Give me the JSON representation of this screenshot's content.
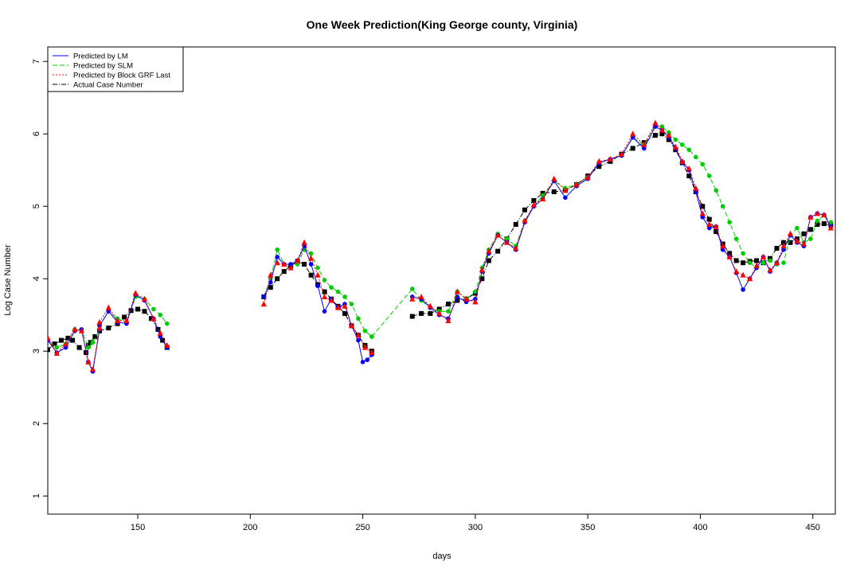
{
  "chart_data": {
    "type": "line",
    "title": "One Week Prediction(King George county, Virginia)",
    "xlabel": "days",
    "ylabel": "Log Case Number",
    "xlim": [
      110,
      460
    ],
    "ylim": [
      0.75,
      7.2
    ],
    "xticks": [
      150,
      200,
      250,
      300,
      350,
      400,
      450
    ],
    "yticks": [
      1,
      2,
      3,
      4,
      5,
      6,
      7
    ],
    "grid": false,
    "legend": "top-left",
    "legend_entries": [
      {
        "label": "Predicted by LM",
        "color": "#0000ff",
        "dash": "solid"
      },
      {
        "label": "Predicted by SLM",
        "color": "#00cc00",
        "dash": "dashed"
      },
      {
        "label": "Predicted by Block GRF Last",
        "color": "#ff0000",
        "dash": "dotted"
      },
      {
        "label": "Actual Case Number",
        "color": "#000000",
        "dash": "dashdot"
      }
    ],
    "series": [
      {
        "name": "Actual Case Number",
        "color": "#000000",
        "marker": "square",
        "segments": [
          {
            "x": [
              110,
              113,
              116,
              119,
              121,
              124,
              127,
              128,
              129,
              131,
              133
            ],
            "y": [
              3.02,
              3.1,
              3.15,
              3.18,
              3.15,
              3.05,
              2.98,
              3.08,
              3.12,
              3.2,
              3.28
            ]
          },
          {
            "x": [
              133,
              137,
              141,
              144,
              147,
              150,
              153,
              156,
              159,
              161,
              163
            ],
            "y": [
              3.28,
              3.32,
              3.38,
              3.47,
              3.56,
              3.58,
              3.55,
              3.45,
              3.3,
              3.15,
              3.05
            ]
          },
          {
            "x": [
              206,
              209,
              212,
              215,
              218,
              221,
              224,
              227,
              230,
              233,
              236,
              239,
              242,
              245,
              248,
              251,
              254
            ],
            "y": [
              3.75,
              3.88,
              4.0,
              4.1,
              4.18,
              4.24,
              4.2,
              4.05,
              3.92,
              3.82,
              3.72,
              3.62,
              3.52,
              3.35,
              3.22,
              3.08,
              3.0
            ]
          },
          {
            "x": [
              272,
              276,
              280,
              284,
              288,
              292,
              296,
              300,
              303,
              306,
              310,
              314,
              318,
              322,
              326,
              330,
              335,
              340,
              345,
              350,
              355,
              360,
              365,
              370,
              375,
              380,
              383,
              386,
              389,
              392,
              395,
              398,
              401,
              404,
              407,
              410,
              413,
              416,
              419,
              422,
              425,
              428,
              431,
              434,
              437,
              440,
              443,
              446,
              449,
              452,
              455,
              458
            ],
            "y": [
              3.48,
              3.52,
              3.52,
              3.58,
              3.65,
              3.7,
              3.72,
              3.8,
              4.0,
              4.25,
              4.38,
              4.55,
              4.75,
              4.95,
              5.08,
              5.18,
              5.2,
              5.22,
              5.3,
              5.42,
              5.55,
              5.62,
              5.72,
              5.8,
              5.88,
              5.98,
              6.0,
              5.92,
              5.78,
              5.6,
              5.42,
              5.2,
              5.0,
              4.82,
              4.65,
              4.48,
              4.35,
              4.25,
              4.22,
              4.24,
              4.25,
              4.22,
              4.28,
              4.42,
              4.5,
              4.5,
              4.55,
              4.62,
              4.68,
              4.75,
              4.76,
              4.74
            ]
          }
        ]
      },
      {
        "name": "Predicted by SLM",
        "color": "#00cc00",
        "marker": "circle",
        "segments": [
          {
            "x": [
              110,
              114,
              118,
              122,
              125,
              128,
              130,
              133
            ],
            "y": [
              3.15,
              3.05,
              3.1,
              3.3,
              3.3,
              3.05,
              3.12,
              3.3
            ]
          },
          {
            "x": [
              133,
              137,
              141,
              145,
              149,
              153,
              157,
              160,
              163
            ],
            "y": [
              3.35,
              3.55,
              3.45,
              3.4,
              3.75,
              3.72,
              3.58,
              3.5,
              3.38
            ]
          },
          {
            "x": [
              206,
              209,
              212,
              215,
              218,
              221,
              224,
              227,
              230,
              233,
              236,
              239,
              242,
              245,
              248,
              251,
              254
            ],
            "y": [
              3.75,
              4.0,
              4.4,
              4.2,
              4.2,
              4.2,
              4.4,
              4.35,
              4.15,
              3.98,
              3.88,
              3.82,
              3.75,
              3.65,
              3.45,
              3.28,
              3.2
            ]
          },
          {
            "x": [
              254,
              272,
              276,
              280,
              284,
              288,
              292,
              296,
              300,
              303,
              306,
              310,
              314,
              318,
              322,
              326,
              330,
              335,
              340,
              345,
              350,
              355,
              360,
              365,
              370,
              375,
              380,
              383,
              386,
              389,
              392,
              395,
              398,
              401,
              404,
              407,
              410,
              413,
              416,
              419,
              422,
              425,
              428,
              431,
              434,
              437,
              440,
              443,
              446,
              449,
              452,
              455,
              458
            ],
            "y": [
              3.2,
              3.86,
              3.7,
              3.6,
              3.55,
              3.55,
              3.82,
              3.72,
              3.82,
              4.15,
              4.4,
              4.62,
              4.55,
              4.45,
              4.8,
              5.0,
              5.15,
              5.35,
              5.25,
              5.3,
              5.4,
              5.6,
              5.65,
              5.7,
              5.95,
              5.85,
              6.12,
              6.1,
              6.02,
              5.92,
              5.85,
              5.78,
              5.68,
              5.58,
              5.42,
              5.22,
              5.0,
              4.78,
              4.55,
              4.35,
              4.22,
              4.15,
              4.22,
              4.25,
              4.2,
              4.22,
              4.6,
              4.7,
              4.5,
              4.55,
              4.8,
              4.88,
              4.78
            ]
          }
        ]
      },
      {
        "name": "Predicted by LM",
        "color": "#0000ff",
        "marker": "circle",
        "segments": [
          {
            "x": [
              110,
              114,
              118,
              122,
              125,
              128,
              130,
              133
            ],
            "y": [
              3.15,
              2.98,
              3.05,
              3.28,
              3.3,
              2.85,
              2.72,
              3.3
            ]
          },
          {
            "x": [
              133,
              137,
              141,
              145,
              149,
              153,
              157,
              160,
              163
            ],
            "y": [
              3.35,
              3.55,
              3.4,
              3.38,
              3.78,
              3.7,
              3.45,
              3.2,
              3.05
            ]
          },
          {
            "x": [
              206,
              209,
              212,
              215,
              218,
              221,
              224,
              227,
              230,
              233,
              236,
              239,
              242,
              245,
              248,
              250,
              252,
              254
            ],
            "y": [
              3.75,
              3.95,
              4.3,
              4.2,
              4.2,
              4.25,
              4.45,
              4.2,
              3.9,
              3.55,
              3.72,
              3.6,
              3.65,
              3.35,
              3.15,
              2.85,
              2.88,
              2.95
            ]
          },
          {
            "x": [
              272,
              276,
              280,
              284,
              288,
              292,
              296,
              300,
              303,
              306,
              310,
              314,
              318,
              322,
              326,
              330,
              335,
              340,
              345,
              350,
              355,
              360,
              365,
              370,
              375,
              380,
              383,
              386,
              389,
              392,
              395,
              398,
              401,
              404,
              407,
              410,
              413,
              416,
              419,
              422,
              425,
              428,
              431,
              434,
              437,
              440,
              443,
              446,
              449,
              452,
              455,
              458
            ],
            "y": [
              3.75,
              3.72,
              3.6,
              3.5,
              3.45,
              3.75,
              3.68,
              3.72,
              4.1,
              4.35,
              4.6,
              4.5,
              4.4,
              4.78,
              5.0,
              5.1,
              5.35,
              5.12,
              5.28,
              5.38,
              5.6,
              5.65,
              5.7,
              5.95,
              5.8,
              6.1,
              6.05,
              5.95,
              5.8,
              5.6,
              5.5,
              5.2,
              4.85,
              4.7,
              4.72,
              4.4,
              4.3,
              4.08,
              3.85,
              4.0,
              4.15,
              4.3,
              4.1,
              4.22,
              4.4,
              4.6,
              4.5,
              4.45,
              4.85,
              4.9,
              4.88,
              4.72
            ]
          }
        ]
      },
      {
        "name": "Predicted by Block GRF Last",
        "color": "#ff0000",
        "marker": "triangle",
        "segments": [
          {
            "x": [
              110,
              114,
              118,
              122,
              125,
              128,
              130,
              133
            ],
            "y": [
              3.18,
              2.97,
              3.1,
              3.3,
              3.28,
              2.85,
              2.75,
              3.32
            ]
          },
          {
            "x": [
              133,
              137,
              141,
              145,
              149,
              153,
              157,
              160,
              163
            ],
            "y": [
              3.4,
              3.6,
              3.42,
              3.42,
              3.8,
              3.72,
              3.45,
              3.25,
              3.08
            ]
          },
          {
            "x": [
              206,
              209,
              212,
              215,
              218,
              221,
              224,
              227,
              230,
              233,
              236,
              239,
              242,
              245,
              248,
              251,
              254
            ],
            "y": [
              3.65,
              4.05,
              4.22,
              4.2,
              4.15,
              4.25,
              4.5,
              4.28,
              4.05,
              3.75,
              3.7,
              3.6,
              3.62,
              3.35,
              3.22,
              3.05,
              2.98
            ]
          },
          {
            "x": [
              272,
              276,
              280,
              284,
              288,
              292,
              296,
              300,
              303,
              306,
              310,
              314,
              318,
              322,
              326,
              330,
              335,
              340,
              345,
              350,
              355,
              360,
              365,
              370,
              375,
              380,
              383,
              386,
              389,
              392,
              395,
              398,
              401,
              404,
              407,
              410,
              413,
              416,
              419,
              422,
              425,
              428,
              431,
              434,
              437,
              440,
              443,
              446,
              449,
              452,
              455,
              458
            ],
            "y": [
              3.72,
              3.75,
              3.62,
              3.52,
              3.42,
              3.82,
              3.72,
              3.68,
              4.12,
              4.38,
              4.6,
              4.5,
              4.42,
              4.8,
              5.02,
              5.1,
              5.38,
              5.22,
              5.3,
              5.4,
              5.62,
              5.65,
              5.72,
              6.0,
              5.85,
              6.15,
              6.05,
              5.98,
              5.82,
              5.62,
              5.52,
              5.25,
              4.9,
              4.75,
              4.72,
              4.45,
              4.3,
              4.1,
              4.05,
              4.0,
              4.18,
              4.3,
              4.12,
              4.22,
              4.45,
              4.62,
              4.52,
              4.48,
              4.85,
              4.9,
              4.88,
              4.7
            ]
          }
        ]
      }
    ]
  }
}
